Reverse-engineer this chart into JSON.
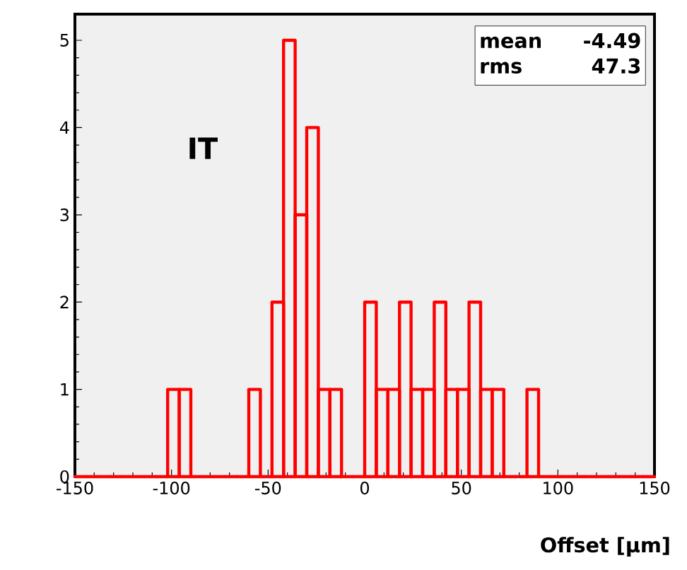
{
  "chart_data": {
    "type": "histogram",
    "xlabel": "Offset [μm]",
    "bins": [
      -150,
      -144,
      -138,
      -132,
      -126,
      -120,
      -114,
      -108,
      -102,
      -96,
      -90,
      -84,
      -78,
      -72,
      -66,
      -60,
      -54,
      -48,
      -42,
      -36,
      -30,
      -24,
      -18,
      -12,
      -6,
      0,
      6,
      12,
      18,
      24,
      30,
      36,
      42,
      48,
      54,
      60,
      66,
      72,
      78,
      84,
      90,
      96,
      102,
      108,
      114,
      120,
      126,
      132,
      138,
      144,
      150
    ],
    "values": [
      0,
      0,
      0,
      0,
      0,
      0,
      0,
      0,
      1,
      1,
      0,
      0,
      0,
      0,
      0,
      1,
      0,
      2,
      5,
      3,
      4,
      1,
      1,
      0,
      0,
      2,
      1,
      1,
      2,
      1,
      1,
      2,
      1,
      1,
      2,
      1,
      1,
      0,
      0,
      1,
      0,
      0,
      0,
      0,
      0,
      0,
      0,
      0,
      0,
      0
    ],
    "color": "#ff0000",
    "xlim": [
      -150,
      150
    ],
    "ylim": [
      0,
      5.3
    ],
    "xticks": [
      -150,
      -100,
      -50,
      0,
      50,
      100,
      150
    ],
    "yticks": [
      0,
      1,
      2,
      3,
      4,
      5
    ],
    "annotations": [
      "IT",
      "mean",
      "-4.49",
      "rms",
      "47.3"
    ],
    "grid": false
  }
}
